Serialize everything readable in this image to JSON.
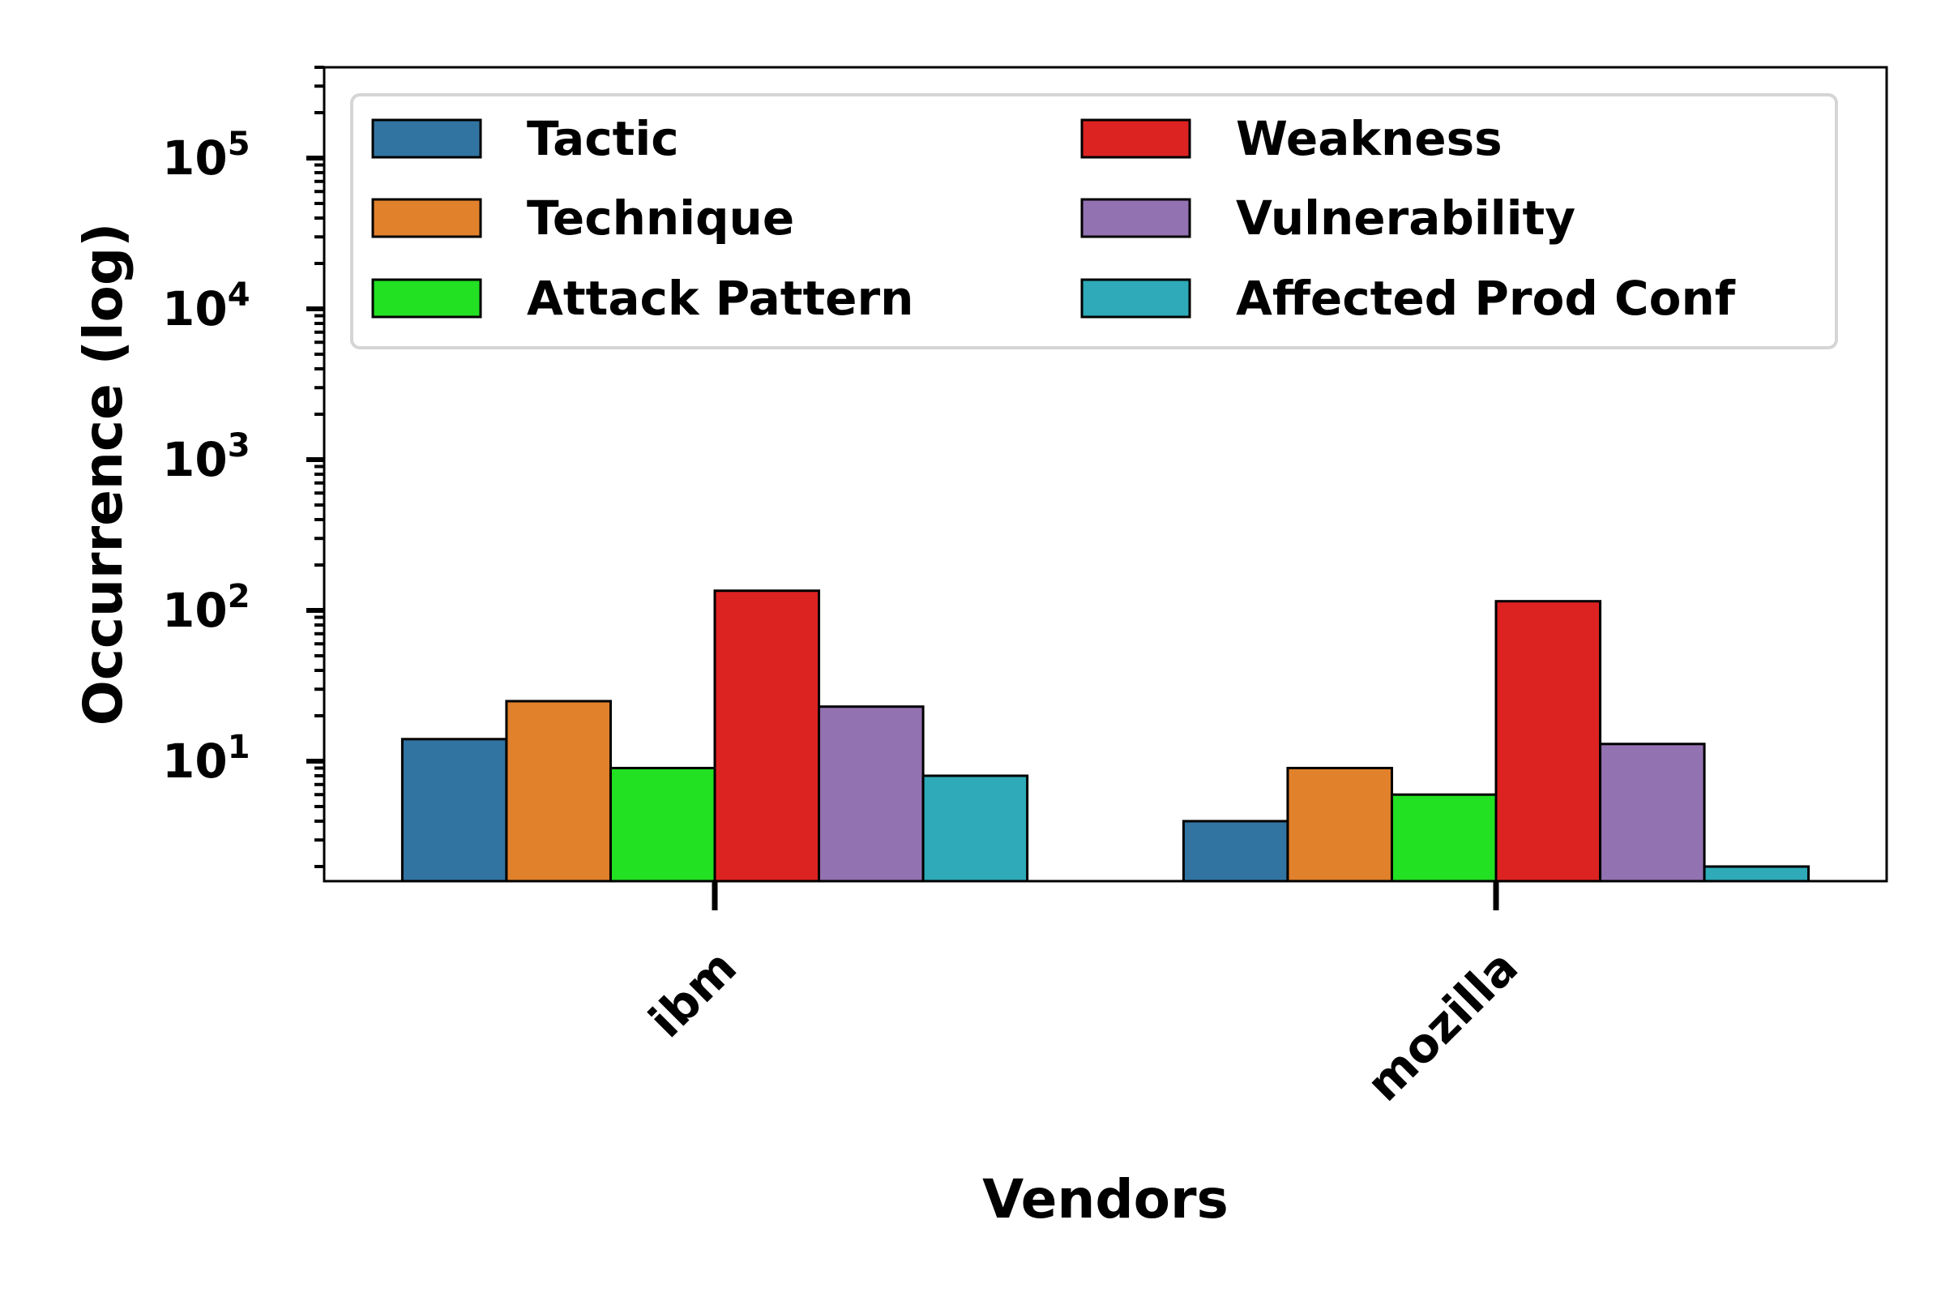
{
  "chart_data": {
    "type": "bar",
    "xlabel": "Vendors",
    "ylabel": "Occurrence (log)",
    "yscale": "log",
    "ylim": [
      1.6,
      400000
    ],
    "yticks": [
      {
        "value": 10,
        "base": "10",
        "exp": "1"
      },
      {
        "value": 100,
        "base": "10",
        "exp": "2"
      },
      {
        "value": 1000,
        "base": "10",
        "exp": "3"
      },
      {
        "value": 10000,
        "base": "10",
        "exp": "4"
      },
      {
        "value": 100000,
        "base": "10",
        "exp": "5"
      }
    ],
    "categories": [
      "ibm",
      "mozilla"
    ],
    "series": [
      {
        "name": "Tactic",
        "color": "#3274a1",
        "values": [
          14,
          4
        ]
      },
      {
        "name": "Technique",
        "color": "#e1812c",
        "values": [
          25,
          9
        ]
      },
      {
        "name": "Attack Pattern",
        "color": "#22e022",
        "values": [
          9,
          6
        ]
      },
      {
        "name": "Weakness",
        "color": "#dd2222",
        "values": [
          135,
          115
        ]
      },
      {
        "name": "Vulnerability",
        "color": "#9372b2",
        "values": [
          23,
          13
        ]
      },
      {
        "name": "Affected Prod Conf",
        "color": "#2eaab8",
        "values": [
          8,
          2
        ]
      }
    ],
    "legend": {
      "position": "top",
      "columns": 2
    },
    "grid": false
  }
}
